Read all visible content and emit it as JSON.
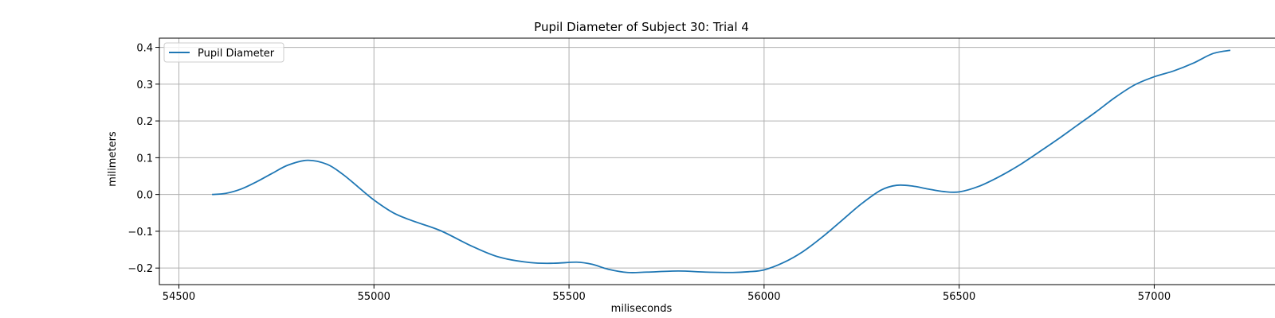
{
  "chart_data": {
    "type": "line",
    "title": "Pupil Diameter of Subject 30: Trial 4",
    "xlabel": "miliseconds",
    "ylabel": "milimeters",
    "xlim": [
      54450,
      57330
    ],
    "ylim": [
      -0.245,
      0.425
    ],
    "xticks": [
      54500,
      55000,
      55500,
      56000,
      56500,
      57000
    ],
    "yticks": [
      -0.2,
      -0.1,
      0.0,
      0.1,
      0.2,
      0.3,
      0.4
    ],
    "ytick_labels": [
      "−0.2",
      "−0.1",
      "0.0",
      "0.1",
      "0.2",
      "0.3",
      "0.4"
    ],
    "grid": true,
    "legend_position": "top-left",
    "series": [
      {
        "name": "Pupil Diameter",
        "color": "#1f77b4",
        "x": [
          54585,
          54620,
          54660,
          54700,
          54740,
          54780,
          54830,
          54880,
          54920,
          54960,
          55000,
          55050,
          55100,
          55170,
          55250,
          55320,
          55400,
          55460,
          55520,
          55560,
          55600,
          55650,
          55700,
          55780,
          55850,
          55920,
          55960,
          56000,
          56050,
          56100,
          56150,
          56200,
          56250,
          56300,
          56340,
          56380,
          56420,
          56460,
          56500,
          56550,
          56600,
          56650,
          56700,
          56750,
          56800,
          56850,
          56900,
          56950,
          57000,
          57050,
          57100,
          57150,
          57195
        ],
        "y": [
          0.0,
          0.003,
          0.015,
          0.035,
          0.058,
          0.08,
          0.093,
          0.082,
          0.055,
          0.02,
          -0.015,
          -0.05,
          -0.072,
          -0.098,
          -0.14,
          -0.17,
          -0.185,
          -0.187,
          -0.184,
          -0.19,
          -0.203,
          -0.212,
          -0.211,
          -0.208,
          -0.211,
          -0.212,
          -0.21,
          -0.205,
          -0.185,
          -0.155,
          -0.115,
          -0.07,
          -0.025,
          0.012,
          0.025,
          0.023,
          0.015,
          0.008,
          0.007,
          0.022,
          0.047,
          0.077,
          0.112,
          0.148,
          0.186,
          0.224,
          0.264,
          0.298,
          0.32,
          0.336,
          0.357,
          0.383,
          0.392
        ]
      }
    ]
  }
}
